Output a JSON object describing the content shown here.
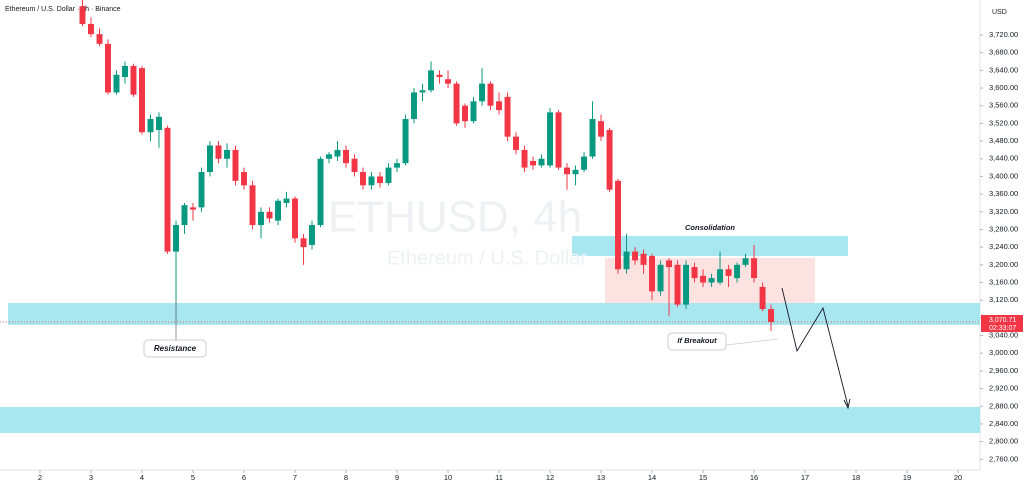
{
  "chart_data": {
    "type": "candlestick",
    "title": "Ethereum / U.S. Dollar · 4h · Binance",
    "currency": "USD",
    "watermark": [
      "ETHUSD, 4h",
      "Ethereum / U.S. Dollar"
    ],
    "annotations": [
      "Consolidation",
      "Resistance",
      "If Breakout"
    ],
    "up_color": "#089981",
    "down_color": "#f23645",
    "last_price": {
      "value": 3070.71,
      "label": "3,070.71"
    },
    "countdown": "02:33:07",
    "xlim": [
      1.216,
      20.43
    ],
    "ylim": [
      2735.8,
      3799.2
    ],
    "xticks": [
      2,
      3,
      4,
      5,
      6,
      7,
      8,
      9,
      10,
      11,
      12,
      13,
      14,
      15,
      16,
      17,
      18,
      19,
      20
    ],
    "yticks": [
      {
        "value": 2760,
        "label": "2,760.00"
      },
      {
        "value": 2800,
        "label": "2,800.00"
      },
      {
        "value": 2840,
        "label": "2,840.00"
      },
      {
        "value": 2880,
        "label": "2,880.00"
      },
      {
        "value": 2920,
        "label": "2,920.00"
      },
      {
        "value": 2960,
        "label": "2,960.00"
      },
      {
        "value": 3000,
        "label": "3,000.00"
      },
      {
        "value": 3040,
        "label": "3,040.00"
      },
      {
        "value": 3080,
        "label": "3,080.00"
      },
      {
        "value": 3120,
        "label": "3,120.00"
      },
      {
        "value": 3160,
        "label": "3,160.00"
      },
      {
        "value": 3200,
        "label": "3,200.00"
      },
      {
        "value": 3240,
        "label": "3,240.00"
      },
      {
        "value": 3280,
        "label": "3,280.00"
      },
      {
        "value": 3320,
        "label": "3,320.00"
      },
      {
        "value": 3360,
        "label": "3,360.00"
      },
      {
        "value": 3400,
        "label": "3,400.00"
      },
      {
        "value": 3440,
        "label": "3,440.00"
      },
      {
        "value": 3480,
        "label": "3,480.00"
      },
      {
        "value": 3520,
        "label": "3,520.00"
      },
      {
        "value": 3560,
        "label": "3,560.00"
      },
      {
        "value": 3600,
        "label": "3,600.00"
      },
      {
        "value": 3640,
        "label": "3,640.00"
      },
      {
        "value": 3680,
        "label": "3,680.00"
      },
      {
        "value": 3720,
        "label": "3,720.00"
      }
    ],
    "x": [
      2.833,
      3,
      3.167,
      3.333,
      3.5,
      3.667,
      3.833,
      4,
      4.167,
      4.333,
      4.5,
      4.667,
      4.833,
      5,
      5.167,
      5.333,
      5.5,
      5.667,
      5.833,
      6,
      6.167,
      6.333,
      6.5,
      6.667,
      6.833,
      7,
      7.167,
      7.333,
      7.5,
      7.667,
      7.833,
      8,
      8.167,
      8.333,
      8.5,
      8.667,
      8.833,
      9,
      9.167,
      9.333,
      9.5,
      9.667,
      9.833,
      10,
      10.167,
      10.333,
      10.5,
      10.667,
      10.833,
      11,
      11.167,
      11.333,
      11.5,
      11.667,
      11.833,
      12,
      12.167,
      12.333,
      12.5,
      12.667,
      12.833,
      13,
      13.167,
      13.333,
      13.5,
      13.667,
      13.833,
      14,
      14.167,
      14.333,
      14.5,
      14.667,
      14.833,
      15,
      15.167,
      15.333,
      15.5,
      15.667,
      15.833,
      16,
      16.167,
      16.333
    ],
    "ohlc": [
      [
        3785,
        3800,
        3740,
        3745
      ],
      [
        3745,
        3760,
        3715,
        3722
      ],
      [
        3722,
        3735,
        3695,
        3700
      ],
      [
        3700,
        3710,
        3585,
        3590
      ],
      [
        3590,
        3640,
        3585,
        3630
      ],
      [
        3625,
        3660,
        3610,
        3650
      ],
      [
        3650,
        3655,
        3580,
        3585
      ],
      [
        3645,
        3650,
        3495,
        3500
      ],
      [
        3500,
        3540,
        3480,
        3530
      ],
      [
        3505,
        3545,
        3465,
        3535
      ],
      [
        3510,
        3515,
        3225,
        3230
      ],
      [
        3230,
        3300,
        3070,
        3290
      ],
      [
        3290,
        3340,
        3270,
        3335
      ],
      [
        3330,
        3340,
        3300,
        3325
      ],
      [
        3330,
        3420,
        3320,
        3410
      ],
      [
        3410,
        3480,
        3400,
        3470
      ],
      [
        3470,
        3480,
        3430,
        3440
      ],
      [
        3440,
        3475,
        3420,
        3460
      ],
      [
        3460,
        3470,
        3380,
        3390
      ],
      [
        3410,
        3420,
        3370,
        3380
      ],
      [
        3380,
        3390,
        3280,
        3290
      ],
      [
        3290,
        3330,
        3260,
        3320
      ],
      [
        3320,
        3330,
        3295,
        3305
      ],
      [
        3300,
        3350,
        3290,
        3345
      ],
      [
        3340,
        3365,
        3330,
        3350
      ],
      [
        3350,
        3355,
        3250,
        3260
      ],
      [
        3260,
        3270,
        3200,
        3240
      ],
      [
        3245,
        3300,
        3235,
        3290
      ],
      [
        3290,
        3445,
        3285,
        3440
      ],
      [
        3440,
        3455,
        3430,
        3450
      ],
      [
        3445,
        3480,
        3435,
        3460
      ],
      [
        3460,
        3470,
        3420,
        3430
      ],
      [
        3440,
        3450,
        3400,
        3410
      ],
      [
        3410,
        3420,
        3370,
        3380
      ],
      [
        3380,
        3410,
        3370,
        3400
      ],
      [
        3400,
        3410,
        3375,
        3385
      ],
      [
        3385,
        3430,
        3380,
        3420
      ],
      [
        3420,
        3440,
        3410,
        3430
      ],
      [
        3430,
        3540,
        3425,
        3530
      ],
      [
        3530,
        3600,
        3520,
        3590
      ],
      [
        3590,
        3610,
        3570,
        3595
      ],
      [
        3595,
        3660,
        3590,
        3640
      ],
      [
        3630,
        3640,
        3610,
        3625
      ],
      [
        3620,
        3640,
        3600,
        3610
      ],
      [
        3610,
        3615,
        3515,
        3520
      ],
      [
        3560,
        3565,
        3510,
        3525
      ],
      [
        3525,
        3580,
        3520,
        3570
      ],
      [
        3570,
        3645,
        3560,
        3610
      ],
      [
        3610,
        3615,
        3550,
        3560
      ],
      [
        3570,
        3590,
        3540,
        3550
      ],
      [
        3580,
        3590,
        3480,
        3490
      ],
      [
        3490,
        3500,
        3450,
        3460
      ],
      [
        3460,
        3470,
        3410,
        3420
      ],
      [
        3435,
        3445,
        3415,
        3425
      ],
      [
        3425,
        3450,
        3420,
        3440
      ],
      [
        3425,
        3555,
        3420,
        3545
      ],
      [
        3545,
        3550,
        3415,
        3420
      ],
      [
        3420,
        3430,
        3370,
        3405
      ],
      [
        3405,
        3425,
        3380,
        3415
      ],
      [
        3415,
        3455,
        3410,
        3445
      ],
      [
        3445,
        3570,
        3440,
        3530
      ],
      [
        3525,
        3540,
        3480,
        3490
      ],
      [
        3505,
        3510,
        3365,
        3370
      ],
      [
        3390,
        3395,
        3180,
        3190
      ],
      [
        3190,
        3270,
        3180,
        3230
      ],
      [
        3230,
        3240,
        3200,
        3210
      ],
      [
        3225,
        3235,
        3180,
        3200
      ],
      [
        3220,
        3225,
        3120,
        3140
      ],
      [
        3140,
        3210,
        3130,
        3200
      ],
      [
        3210,
        3215,
        3085,
        3195
      ],
      [
        3200,
        3210,
        3105,
        3110
      ],
      [
        3110,
        3210,
        3100,
        3200
      ],
      [
        3195,
        3205,
        3160,
        3170
      ],
      [
        3175,
        3190,
        3150,
        3160
      ],
      [
        3160,
        3180,
        3150,
        3170
      ],
      [
        3160,
        3230,
        3155,
        3190
      ],
      [
        3190,
        3200,
        3150,
        3175
      ],
      [
        3170,
        3205,
        3160,
        3200
      ],
      [
        3200,
        3225,
        3195,
        3215
      ],
      [
        3215,
        3245,
        3160,
        3170
      ],
      [
        3150,
        3160,
        3095,
        3100
      ],
      [
        3100,
        3110,
        3050,
        3070.71
      ]
    ]
  }
}
